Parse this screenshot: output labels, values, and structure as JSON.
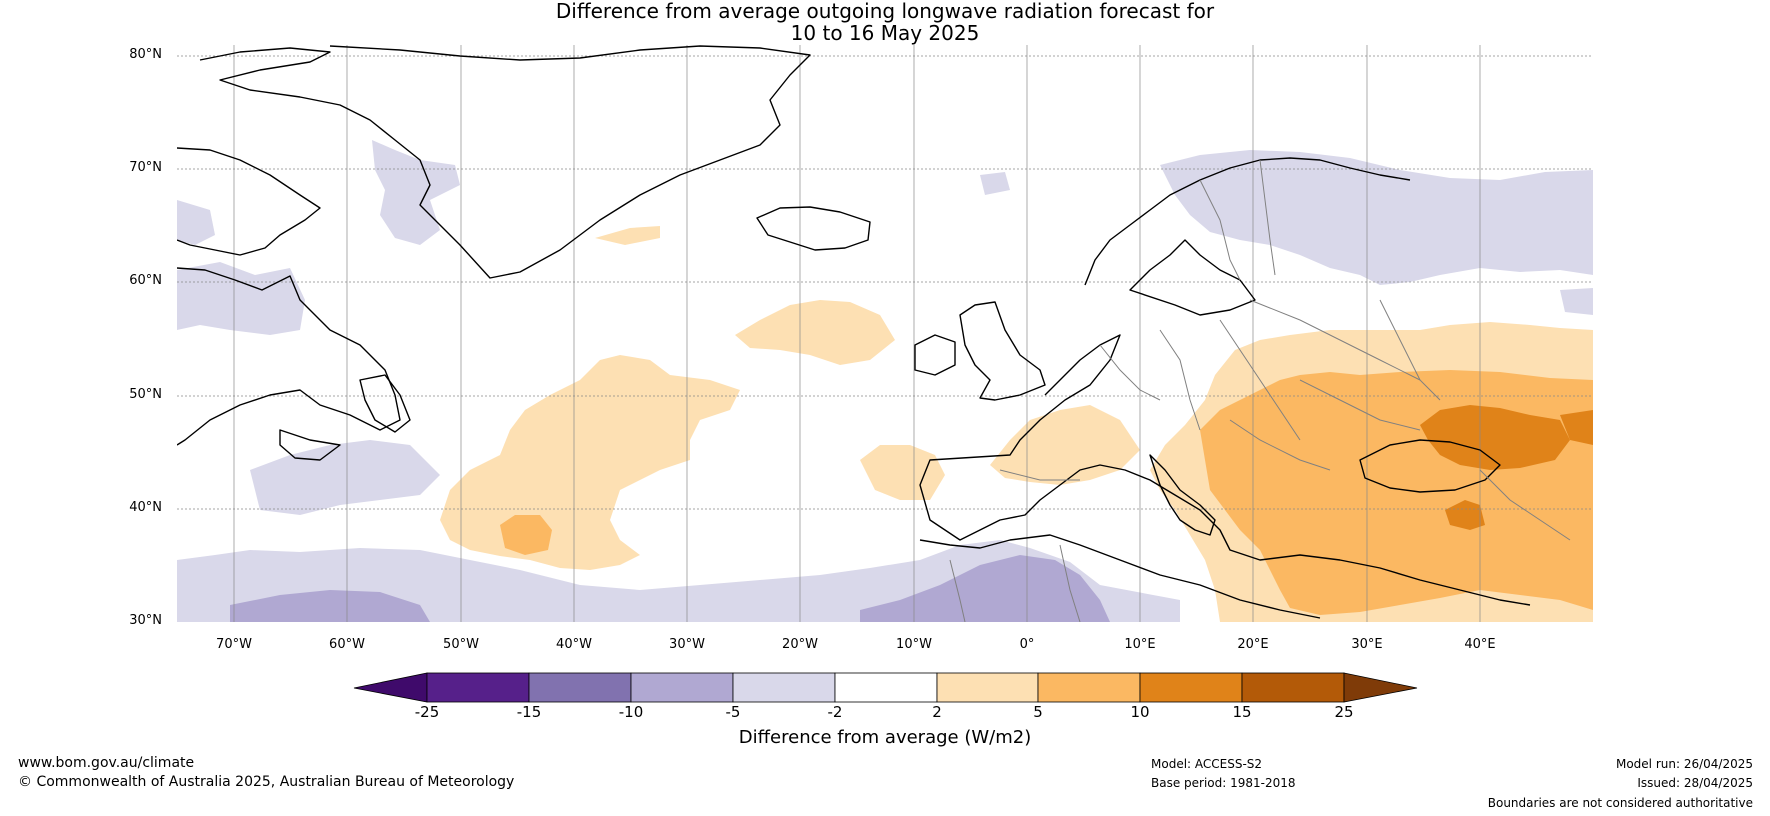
{
  "title": {
    "line1": "Difference from average outgoing longwave radiation forecast for",
    "line2": "10 to 16 May 2025"
  },
  "map": {
    "lat_labels": [
      "80°N",
      "70°N",
      "60°N",
      "50°N",
      "40°N",
      "30°N"
    ],
    "lon_labels": [
      "70°W",
      "60°W",
      "50°W",
      "40°W",
      "30°W",
      "20°W",
      "10°W",
      "0°",
      "10°E",
      "20°E",
      "30°E",
      "40°E"
    ],
    "extent": {
      "lon": [
        -75,
        50
      ],
      "lat": [
        30,
        80
      ]
    },
    "colors": {
      "coast": "#000000",
      "borders": "#808080",
      "grid": "#888888"
    }
  },
  "colorbar": {
    "title": "Difference from average (W/m2)",
    "labels": [
      "-25",
      "-15",
      "-10",
      "-5",
      "-2",
      "2",
      "5",
      "10",
      "15",
      "25"
    ],
    "colors": [
      "#3f0a6b",
      "#56208a",
      "#8172af",
      "#b0a8d2",
      "#d9d8ea",
      "#ffffff",
      "#fde0b3",
      "#fbb862",
      "#e08319",
      "#b35a08",
      "#7f3b08"
    ]
  },
  "footer": {
    "website": "www.bom.gov.au/climate",
    "copyright": "© Commonwealth of Australia 2025, Australian Bureau of Meteorology",
    "model": "Model: ACCESS-S2",
    "base_period": "Base period: 1981-2018",
    "model_run": "Model run: 26/04/2025",
    "issued": "Issued: 28/04/2025",
    "disclaimer": "Boundaries are not considered authoritative"
  }
}
